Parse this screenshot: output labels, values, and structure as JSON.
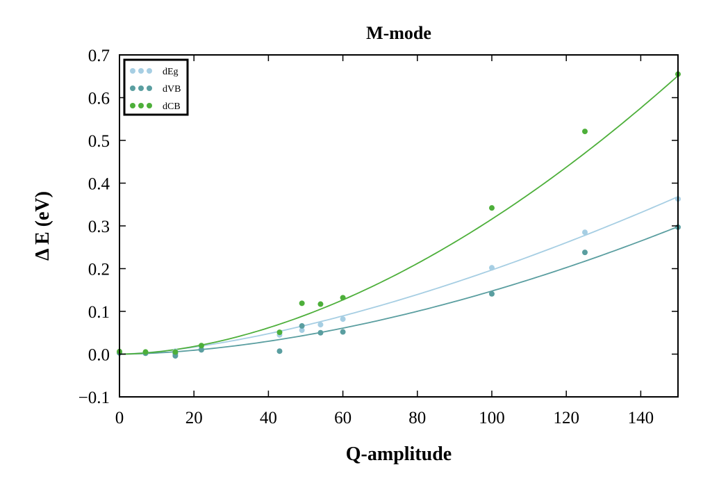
{
  "chart_data": {
    "type": "scatter",
    "title": "M-mode",
    "xlabel": "Q-amplitude",
    "ylabel": "Δ E (eV)",
    "xlim": [
      0,
      150
    ],
    "ylim": [
      -0.1,
      0.7
    ],
    "xticks": [
      0,
      20,
      40,
      60,
      80,
      100,
      120,
      140
    ],
    "xtick_labels": [
      "0",
      "20",
      "40",
      "60",
      "80",
      "100",
      "120",
      "140"
    ],
    "yticks": [
      -0.1,
      0.0,
      0.1,
      0.2,
      0.3,
      0.4,
      0.5,
      0.6,
      0.7
    ],
    "ytick_labels": [
      "−0.1",
      "0.0",
      "0.1",
      "0.2",
      "0.3",
      "0.4",
      "0.5",
      "0.6",
      "0.7"
    ],
    "grid": false,
    "legend_position": "top-left",
    "series": [
      {
        "name": "dEg",
        "color": "#a6cee3",
        "x": [
          0,
          7,
          15,
          22,
          43,
          49,
          54,
          60,
          100,
          125,
          150
        ],
        "y": [
          0.003,
          0.003,
          0.007,
          0.012,
          0.045,
          0.056,
          0.069,
          0.082,
          0.202,
          0.285,
          0.363
        ],
        "fit": {
          "kind": "power",
          "a": 0.00016,
          "b": 1.545
        }
      },
      {
        "name": "dVB",
        "color": "#5a9ea0",
        "x": [
          0,
          7,
          15,
          15,
          22,
          43,
          49,
          54,
          60,
          100,
          125,
          150
        ],
        "y": [
          0.003,
          0.002,
          0.001,
          -0.004,
          0.01,
          0.007,
          0.066,
          0.05,
          0.052,
          0.141,
          0.238,
          0.297
        ],
        "fit": {
          "kind": "power",
          "a": 5e-05,
          "b": 1.735
        }
      },
      {
        "name": "dCB",
        "color": "#4daf3a",
        "x": [
          0,
          7,
          15,
          22,
          43,
          49,
          54,
          60,
          100,
          125,
          150
        ],
        "y": [
          0.006,
          0.005,
          0.005,
          0.02,
          0.051,
          0.119,
          0.117,
          0.132,
          0.342,
          0.521,
          0.655
        ],
        "fit": {
          "kind": "power",
          "a": 8.5e-05,
          "b": 1.785
        }
      }
    ]
  }
}
